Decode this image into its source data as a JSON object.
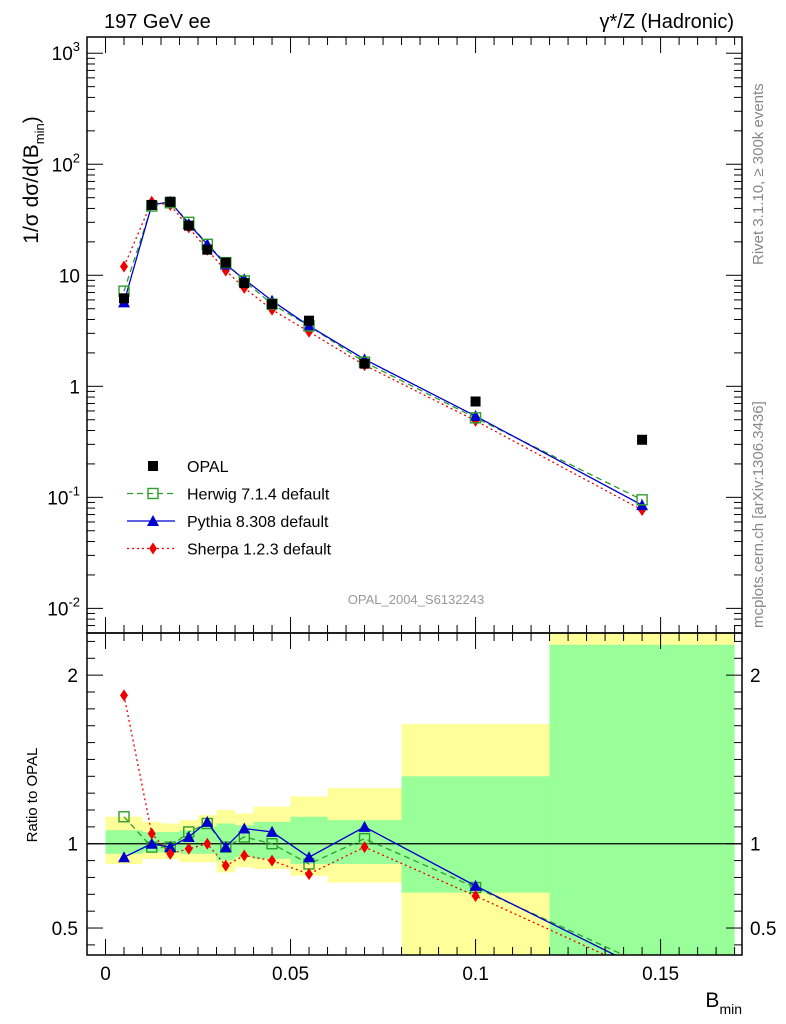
{
  "chart_data": [
    {
      "type": "line",
      "scale_y": "log",
      "title_left": "197 GeV ee",
      "title_right": "γ*/Z (Hadronic)",
      "ylabel": "1/σ dσ/d(B_min)",
      "xlim": [
        -0.005,
        0.172
      ],
      "ylim": [
        0.006,
        1400
      ],
      "y_ticks": [
        "10^-2",
        "10^-1",
        "1",
        "10",
        "10^2",
        "10^3"
      ],
      "grid": false,
      "legend_position": "lower-left",
      "watermark": "OPAL_2004_S6132243",
      "series": [
        {
          "name": "OPAL",
          "style": "data",
          "color": "#000000",
          "marker": "square",
          "x": [
            0.005,
            0.0125,
            0.0175,
            0.0225,
            0.0275,
            0.0325,
            0.0375,
            0.045,
            0.055,
            0.07,
            0.1,
            0.145
          ],
          "y": [
            6.2,
            43,
            46,
            28,
            17,
            13,
            8.5,
            5.5,
            3.9,
            1.6,
            0.73,
            0.33
          ]
        },
        {
          "name": "Herwig 7.1.4 default",
          "style": "dashed",
          "color": "#2e9e2e",
          "marker": "open-square",
          "x": [
            0.005,
            0.0125,
            0.0175,
            0.0225,
            0.0275,
            0.0325,
            0.0375,
            0.045,
            0.055,
            0.07,
            0.1,
            0.145
          ],
          "y": [
            7.2,
            42,
            45,
            30,
            19,
            13,
            8.9,
            5.5,
            3.5,
            1.65,
            0.52,
            0.095
          ]
        },
        {
          "name": "Pythia 8.308 default",
          "style": "solid",
          "color": "#0000cc",
          "marker": "triangle",
          "x": [
            0.005,
            0.0125,
            0.0175,
            0.0225,
            0.0275,
            0.0325,
            0.0375,
            0.045,
            0.055,
            0.07,
            0.1,
            0.145
          ],
          "y": [
            5.7,
            43,
            46,
            29,
            19,
            12.5,
            9.2,
            5.9,
            3.5,
            1.75,
            0.54,
            0.085
          ]
        },
        {
          "name": "Sherpa 1.2.3 default",
          "style": "dotted",
          "color": "#ee0000",
          "marker": "diamond",
          "x": [
            0.005,
            0.0125,
            0.0175,
            0.0225,
            0.0275,
            0.0325,
            0.0375,
            0.045,
            0.055,
            0.07,
            0.1,
            0.145
          ],
          "y": [
            12,
            46,
            43,
            27,
            17,
            11,
            7.7,
            4.9,
            3.1,
            1.55,
            0.49,
            0.077
          ]
        }
      ]
    },
    {
      "type": "line",
      "ylabel": "Ratio to OPAL",
      "xlabel": "B_min",
      "xlim": [
        -0.005,
        0.172
      ],
      "x_ticks": [
        "0",
        "0.05",
        "0.1",
        "0.15"
      ],
      "ylim": [
        0.34,
        2.25
      ],
      "y_ticks": [
        "0.5",
        "1",
        "2"
      ],
      "reference_line": 1,
      "bands": {
        "edges": [
          0.0,
          0.01,
          0.015,
          0.02,
          0.025,
          0.03,
          0.035,
          0.04,
          0.05,
          0.06,
          0.08,
          0.12,
          0.17
        ],
        "yellow": [
          [
            0.88,
            1.16
          ],
          [
            0.91,
            1.13
          ],
          [
            0.91,
            1.12
          ],
          [
            0.89,
            1.14
          ],
          [
            0.89,
            1.17
          ],
          [
            0.83,
            1.2
          ],
          [
            0.86,
            1.18
          ],
          [
            0.85,
            1.22
          ],
          [
            0.81,
            1.28
          ],
          [
            0.77,
            1.33
          ],
          [
            0.33,
            1.71
          ],
          [
            0.33,
            2.45
          ]
        ],
        "green": [
          [
            0.94,
            1.08
          ],
          [
            0.95,
            1.07
          ],
          [
            0.95,
            1.07
          ],
          [
            0.94,
            1.08
          ],
          [
            0.94,
            1.1
          ],
          [
            0.9,
            1.12
          ],
          [
            0.92,
            1.11
          ],
          [
            0.91,
            1.13
          ],
          [
            0.88,
            1.16
          ],
          [
            0.88,
            1.14
          ],
          [
            0.71,
            1.4
          ],
          [
            0.33,
            2.18
          ]
        ]
      },
      "series": [
        {
          "name": "Herwig 7.1.4 default",
          "style": "dashed",
          "color": "#2e9e2e",
          "marker": "open-square",
          "x": [
            0.005,
            0.0125,
            0.0175,
            0.0225,
            0.0275,
            0.0325,
            0.0375,
            0.045,
            0.055,
            0.07,
            0.1,
            0.145
          ],
          "y": [
            1.16,
            0.98,
            0.98,
            1.07,
            1.12,
            0.98,
            1.04,
            1.0,
            0.88,
            1.03,
            0.74,
            0.29
          ]
        },
        {
          "name": "Pythia 8.308 default",
          "style": "solid",
          "color": "#0000cc",
          "marker": "triangle",
          "x": [
            0.005,
            0.0125,
            0.0175,
            0.0225,
            0.0275,
            0.0325,
            0.0375,
            0.045,
            0.055,
            0.07,
            0.1,
            0.145
          ],
          "y": [
            0.92,
            1.0,
            0.98,
            1.04,
            1.13,
            0.98,
            1.09,
            1.07,
            0.92,
            1.1,
            0.75,
            0.26
          ]
        },
        {
          "name": "Sherpa 1.2.3 default",
          "style": "dotted",
          "color": "#ee0000",
          "marker": "diamond",
          "x": [
            0.005,
            0.0125,
            0.0175,
            0.0225,
            0.0275,
            0.0325,
            0.0375,
            0.045,
            0.055,
            0.07,
            0.1,
            0.145
          ],
          "y": [
            1.88,
            1.06,
            0.94,
            0.97,
            1.0,
            0.87,
            0.93,
            0.9,
            0.82,
            0.98,
            0.69,
            0.24
          ]
        }
      ]
    }
  ],
  "side_text": {
    "rivet": "Rivet 3.1.10, ≥ 300k events",
    "mcplots": "mcplots.cern.ch [arXiv:1306.3436]"
  }
}
